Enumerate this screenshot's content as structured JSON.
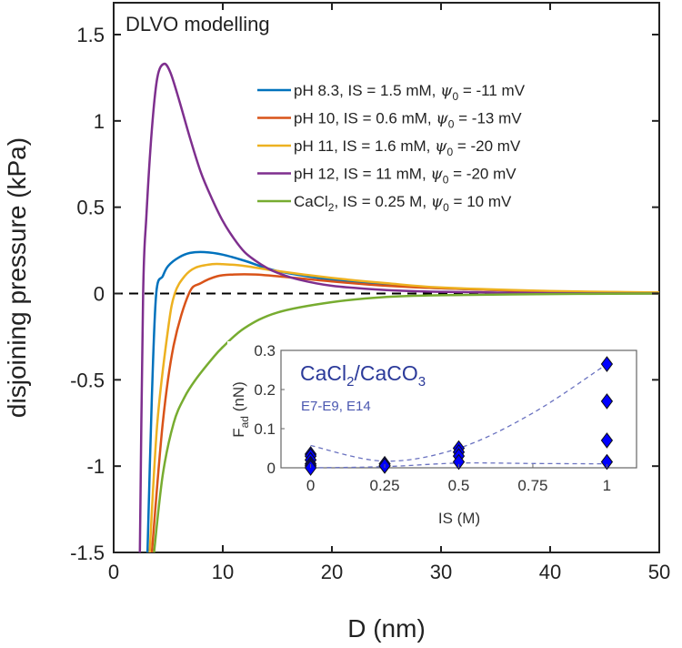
{
  "chart_data": [
    {
      "type": "line",
      "title": "DLVO modelling",
      "xlabel": "D (nm)",
      "ylabel": "disjoining pressure (kPa)",
      "xlim": [
        0,
        50
      ],
      "ylim": [
        -1.5,
        1.5
      ],
      "xticks": [
        "0",
        "10",
        "20",
        "30",
        "40",
        "50"
      ],
      "yticks": [
        "-1.5",
        "-1",
        "-0.5",
        "0",
        "0.5",
        "1",
        "1.5"
      ],
      "legend_position": "top-right",
      "reference_line": {
        "y": 0,
        "style": "dashed",
        "color": "#000000"
      },
      "series": [
        {
          "name": "pH 8.3, IS = 1.5 mM, ψ0 = -11 mV",
          "label_main": "pH 8.3, IS = 1.5 mM, ",
          "psi": "ψ",
          "psi_sub": "0",
          "label_tail": " = -11 mV",
          "color": "#0072BD",
          "x": [
            3.1,
            3.5,
            3.9,
            4.5,
            5,
            6,
            7,
            8.3,
            10,
            12,
            15,
            20,
            25,
            30,
            40,
            50
          ],
          "y": [
            -1.5,
            -0.6,
            0,
            0.1,
            0.16,
            0.21,
            0.235,
            0.24,
            0.225,
            0.19,
            0.13,
            0.08,
            0.05,
            0.03,
            0.012,
            0.005
          ]
        },
        {
          "name": "pH 10, IS = 0.6 mM, ψ0 = -13 mV",
          "label_main": "pH 10, IS = 0.6 mM, ",
          "psi": "ψ",
          "psi_sub": "0",
          "label_tail": " = -13 mV",
          "color": "#D95319",
          "x": [
            3.5,
            4.5,
            5.5,
            6.9,
            8,
            9.5,
            11,
            13,
            15,
            20,
            25,
            30,
            40,
            50
          ],
          "y": [
            -1.5,
            -0.75,
            -0.3,
            0,
            0.06,
            0.1,
            0.11,
            0.11,
            0.1,
            0.07,
            0.045,
            0.03,
            0.012,
            0.005
          ]
        },
        {
          "name": "pH 11, IS = 1.6 mM, ψ0 = -20 mV",
          "label_main": "pH 11, IS = 1.6 mM, ",
          "psi": "ψ",
          "psi_sub": "0",
          "label_tail": " = -20 mV",
          "color": "#EDB120",
          "x": [
            3.3,
            4,
            5,
            5.6,
            6.5,
            7.5,
            9,
            10,
            12,
            15,
            20,
            25,
            30,
            40,
            50
          ],
          "y": [
            -1.5,
            -0.75,
            -0.2,
            0,
            0.1,
            0.15,
            0.17,
            0.17,
            0.16,
            0.13,
            0.09,
            0.06,
            0.035,
            0.015,
            0.006
          ]
        },
        {
          "name": "pH 12, IS = 11 mM, ψ0 = -20 mV",
          "label_main": "pH 12, IS = 11 mM, ",
          "psi": "ψ",
          "psi_sub": "0",
          "label_tail": " = -20 mV",
          "color": "#7E2F8E",
          "x": [
            2.4,
            2.7,
            3.0,
            3.5,
            4.0,
            4.6,
            5.2,
            6,
            7,
            8,
            9,
            10,
            11,
            12,
            13,
            14,
            15,
            17,
            20,
            25,
            30,
            40,
            50
          ],
          "y": [
            -1.5,
            0,
            0.45,
            0.95,
            1.25,
            1.33,
            1.28,
            1.12,
            0.9,
            0.7,
            0.55,
            0.42,
            0.32,
            0.24,
            0.19,
            0.15,
            0.12,
            0.08,
            0.045,
            0.02,
            0.01,
            0.002,
            0
          ]
        },
        {
          "name": "CaCl2, IS = 0.25 M, ψ0 = 10 mV",
          "label_main": "CaCl",
          "label_sub": "2",
          "label_mid": ", IS = 0.25 M, ",
          "psi": "ψ",
          "psi_sub": "0",
          "label_tail": " = 10 mV",
          "color": "#77AC30",
          "x": [
            3.7,
            4.5,
            5.5,
            6.5,
            7.5,
            9,
            10,
            12,
            15,
            20,
            25,
            30,
            40,
            50
          ],
          "y": [
            -1.5,
            -1.05,
            -0.75,
            -0.6,
            -0.5,
            -0.38,
            -0.31,
            -0.2,
            -0.11,
            -0.05,
            -0.02,
            -0.01,
            -0.003,
            0
          ]
        }
      ]
    },
    {
      "type": "scatter",
      "title_main": "CaCl",
      "title_sub1": "2",
      "title_mid": "/CaCO",
      "title_sub2": "3",
      "subtitle": "E7-E9, E14",
      "xlabel": "IS (M)",
      "ylabel_main": "F",
      "ylabel_sub": "ad",
      "ylabel_tail": " (nN)",
      "xlim": [
        -0.1,
        1.1
      ],
      "ylim": [
        0,
        0.3
      ],
      "xticks": [
        "0",
        "0.25",
        "0.5",
        "0.75",
        "1"
      ],
      "yticks": [
        "0",
        "0.1",
        "0.2",
        "0.3"
      ],
      "marker": "diamond",
      "marker_color": "#0000FF",
      "text_color": "#2B3A9A",
      "points": {
        "x": [
          0,
          0,
          0,
          0,
          0,
          0,
          0.25,
          0.25,
          0.25,
          0.5,
          0.5,
          0.5,
          0.5,
          1,
          1,
          1,
          1
        ],
        "y": [
          0.035,
          0.03,
          0.02,
          0.01,
          0.005,
          0,
          0.01,
          0.005,
          0.005,
          0.05,
          0.04,
          0.03,
          0.015,
          0.265,
          0.17,
          0.07,
          0.015
        ]
      },
      "trend_lines": [
        {
          "x": [
            0,
            0.25,
            0.5,
            0.75,
            1
          ],
          "y": [
            0.057,
            0.017,
            0.05,
            0.14,
            0.265
          ]
        },
        {
          "x": [
            0,
            0.25,
            0.5,
            0.75,
            1
          ],
          "y": [
            0,
            0.003,
            0.012,
            0.011,
            0.01
          ]
        }
      ]
    }
  ]
}
